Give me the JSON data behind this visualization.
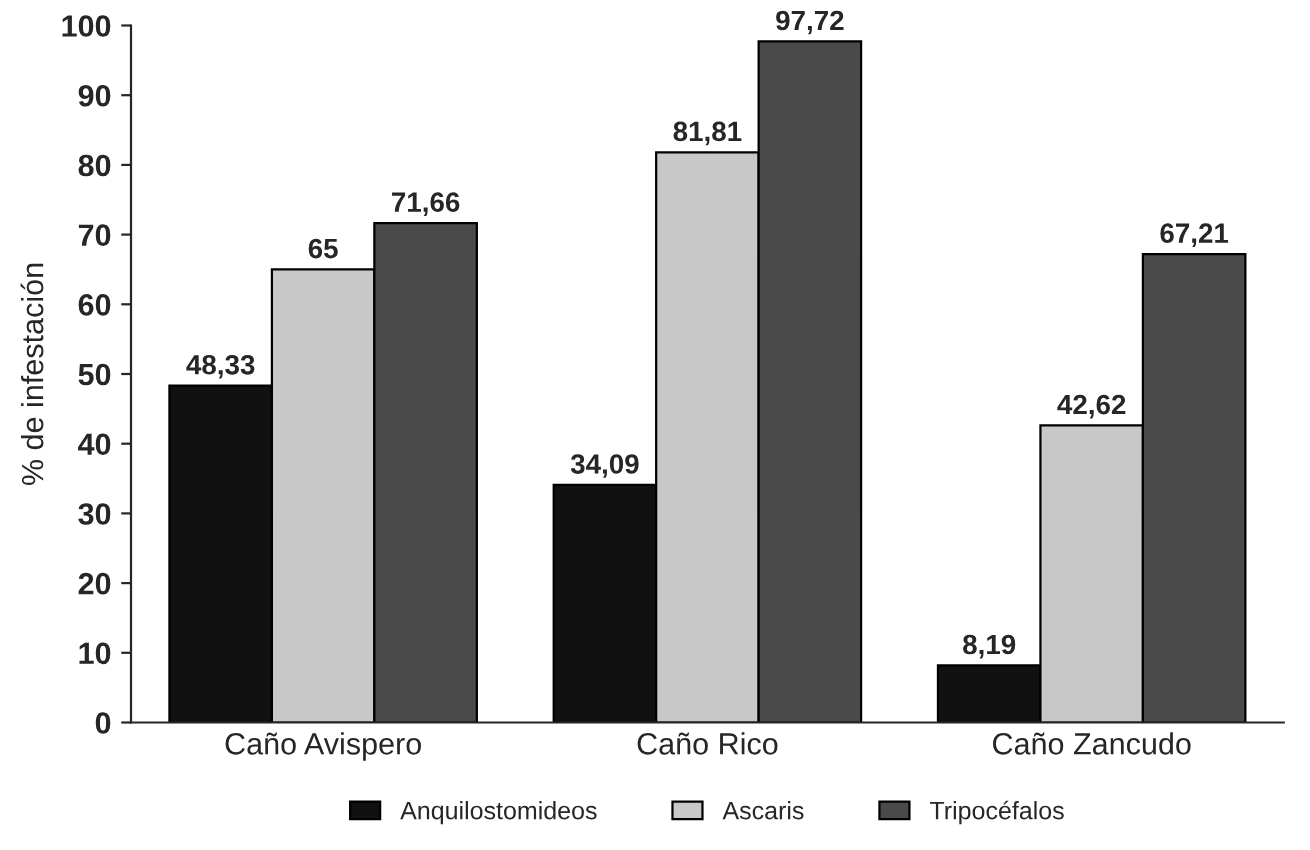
{
  "chart_data": {
    "type": "bar",
    "ylabel": "% de infestación",
    "categories": [
      "Caño Avispero",
      "Caño Rico",
      "Caño Zancudo"
    ],
    "series": [
      {
        "name": "Anquilostomideos",
        "color": "#111111",
        "values": [
          48.33,
          34.09,
          8.19
        ],
        "value_labels": [
          "48,33",
          "34,09",
          "8,19"
        ]
      },
      {
        "name": "Ascaris",
        "color": "#c8c8c8",
        "values": [
          65,
          81.81,
          42.62
        ],
        "value_labels": [
          "65",
          "81,81",
          "42,62"
        ]
      },
      {
        "name": "Tripocéfalos",
        "color": "#4a4a4a",
        "values": [
          71.66,
          97.72,
          67.21
        ],
        "value_labels": [
          "71,66",
          "97,72",
          "67,21"
        ]
      }
    ],
    "ylim": [
      0,
      100
    ],
    "yticks": [
      0,
      10,
      20,
      30,
      40,
      50,
      60,
      70,
      80,
      90,
      100
    ],
    "grid": false,
    "legend": "bottom"
  }
}
